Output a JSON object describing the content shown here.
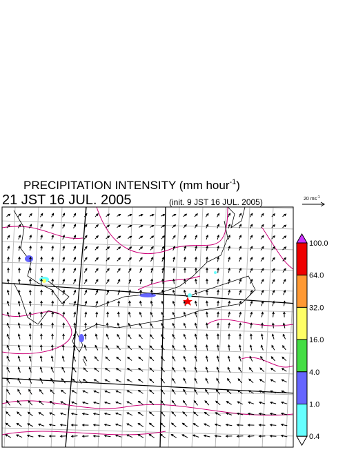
{
  "title": {
    "text": "PRECIPITATION INTENSITY (mm hour",
    "superscript": "-1",
    "end": ")"
  },
  "valid_time": "21 JST 16 JUL. 2005",
  "init_time": "(init. 9 JST 16 JUL. 2005)",
  "reference_vector": {
    "text": "20 ms",
    "superscript": "-1"
  },
  "colorbar": {
    "labels": [
      "100.0",
      "64.0",
      "32.0",
      "16.0",
      "4.0",
      "1.0",
      "0.4"
    ],
    "colors": [
      "#ee0000",
      "#ff9933",
      "#ffff66",
      "#44dd44",
      "#6666ff",
      "#66ffff"
    ],
    "over_color": "#cc33ff",
    "under_color": "#ffffff"
  }
}
